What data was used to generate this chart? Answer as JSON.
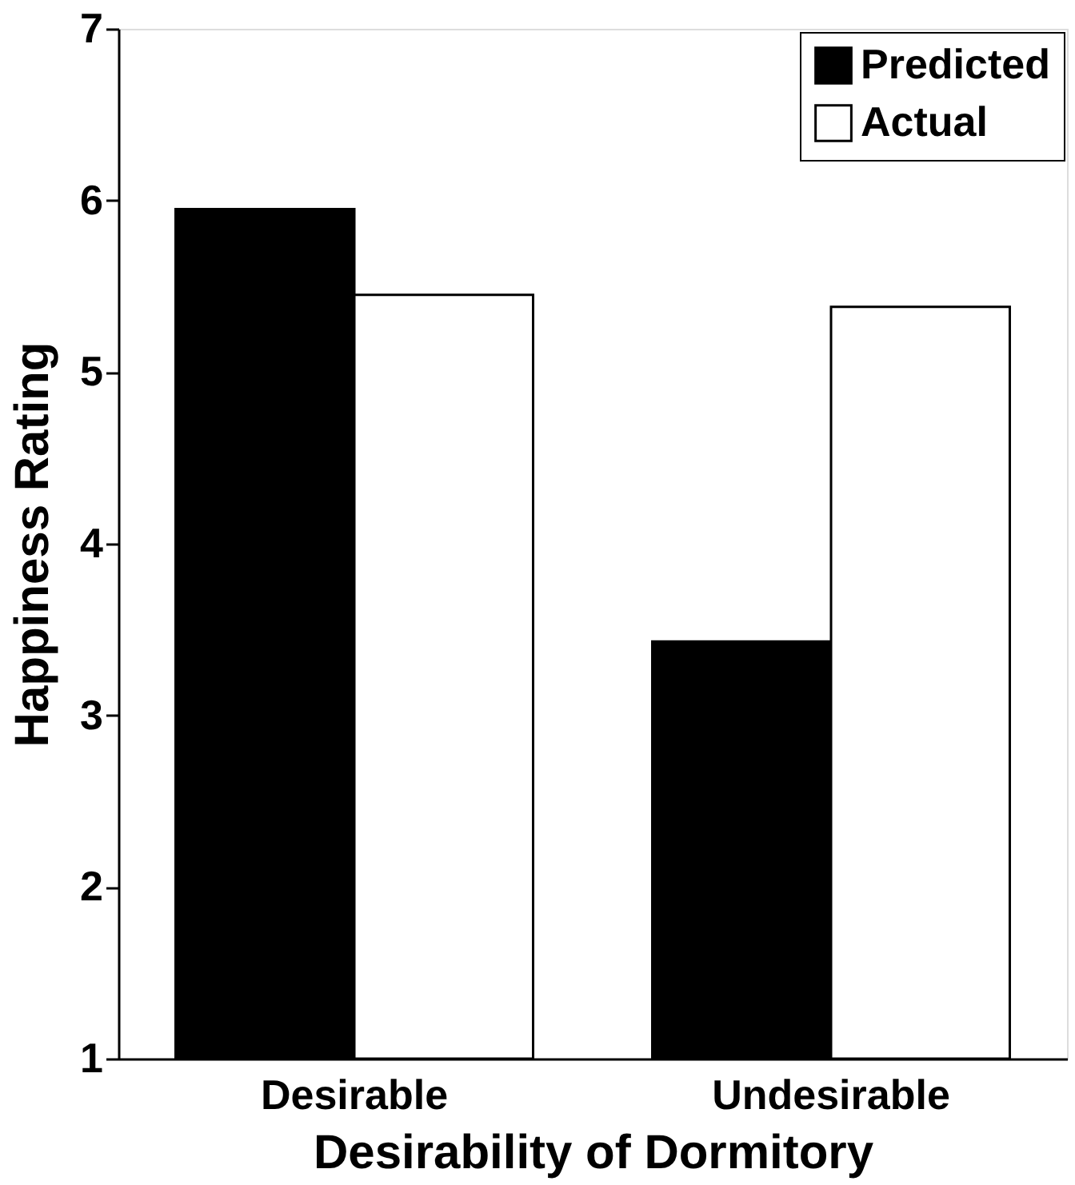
{
  "chart_data": {
    "type": "bar",
    "xlabel": "Desirability of Dormitory",
    "ylabel": "Happiness Rating",
    "categories": [
      "Desirable",
      "Undesirable"
    ],
    "series": [
      {
        "name": "Predicted",
        "color": "#000000",
        "values": [
          5.95,
          3.43
        ]
      },
      {
        "name": "Actual",
        "color": "#ffffff",
        "values": [
          5.45,
          5.38
        ]
      }
    ],
    "ylim": [
      1,
      7
    ],
    "yticks": [
      1,
      2,
      3,
      4,
      5,
      6,
      7
    ],
    "grid": false,
    "legend": "top right"
  }
}
